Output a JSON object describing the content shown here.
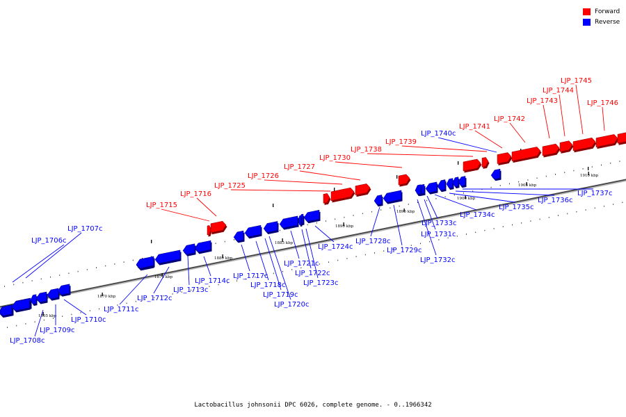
{
  "legend": {
    "forward": {
      "label": "Forward",
      "color": "#ff0000"
    },
    "reverse": {
      "label": "Reverse",
      "color": "#0000ff"
    }
  },
  "caption": "Lactobacillus johnsonii DPC 6026, complete genome. - 0..1966342",
  "scale_labels": [
    "1865 kbp",
    "1870 kbp",
    "1875 kbp",
    "1880 kbp",
    "1885 kbp",
    "1890 kbp",
    "1895 kbp",
    "1900 kbp",
    "1905 kbp",
    "1910 kbp"
  ],
  "genes": [
    {
      "name": "LJP_1706c",
      "strand": "reverse"
    },
    {
      "name": "LJP_1707c",
      "strand": "reverse"
    },
    {
      "name": "LJP_1708c",
      "strand": "reverse"
    },
    {
      "name": "LJP_1709c",
      "strand": "reverse"
    },
    {
      "name": "LJP_1710c",
      "strand": "reverse"
    },
    {
      "name": "LJP_1711c",
      "strand": "reverse"
    },
    {
      "name": "LJP_1712c",
      "strand": "reverse"
    },
    {
      "name": "LJP_1713c",
      "strand": "reverse"
    },
    {
      "name": "LJP_1714c",
      "strand": "reverse"
    },
    {
      "name": "LJP_1715",
      "strand": "forward"
    },
    {
      "name": "LJP_1716",
      "strand": "forward"
    },
    {
      "name": "LJP_1717c",
      "strand": "reverse"
    },
    {
      "name": "LJP_1718c",
      "strand": "reverse"
    },
    {
      "name": "LJP_1719c",
      "strand": "reverse"
    },
    {
      "name": "LJP_1720c",
      "strand": "reverse"
    },
    {
      "name": "LJP_1721c",
      "strand": "reverse"
    },
    {
      "name": "LJP_1722c",
      "strand": "reverse"
    },
    {
      "name": "LJP_1723c",
      "strand": "reverse"
    },
    {
      "name": "LJP_1724c",
      "strand": "reverse"
    },
    {
      "name": "LJP_1725",
      "strand": "forward"
    },
    {
      "name": "LJP_1726",
      "strand": "forward"
    },
    {
      "name": "LJP_1727",
      "strand": "forward"
    },
    {
      "name": "LJP_1728c",
      "strand": "reverse"
    },
    {
      "name": "LJP_1729c",
      "strand": "reverse"
    },
    {
      "name": "LJP_1730",
      "strand": "forward"
    },
    {
      "name": "LJP_1731c",
      "strand": "reverse"
    },
    {
      "name": "LJP_1732c",
      "strand": "reverse"
    },
    {
      "name": "LJP_1733c",
      "strand": "reverse"
    },
    {
      "name": "LJP_1734c",
      "strand": "reverse"
    },
    {
      "name": "LJP_1735c",
      "strand": "reverse"
    },
    {
      "name": "LJP_1736c",
      "strand": "reverse"
    },
    {
      "name": "LJP_1737c",
      "strand": "reverse"
    },
    {
      "name": "LJP_1738",
      "strand": "forward"
    },
    {
      "name": "LJP_1739",
      "strand": "forward"
    },
    {
      "name": "LJP_1740c",
      "strand": "reverse"
    },
    {
      "name": "LJP_1741",
      "strand": "forward"
    },
    {
      "name": "LJP_1742",
      "strand": "forward"
    },
    {
      "name": "LJP_1743",
      "strand": "forward"
    },
    {
      "name": "LJP_1744",
      "strand": "forward"
    },
    {
      "name": "LJP_1745",
      "strand": "forward"
    },
    {
      "name": "LJP_1746",
      "strand": "forward"
    }
  ]
}
